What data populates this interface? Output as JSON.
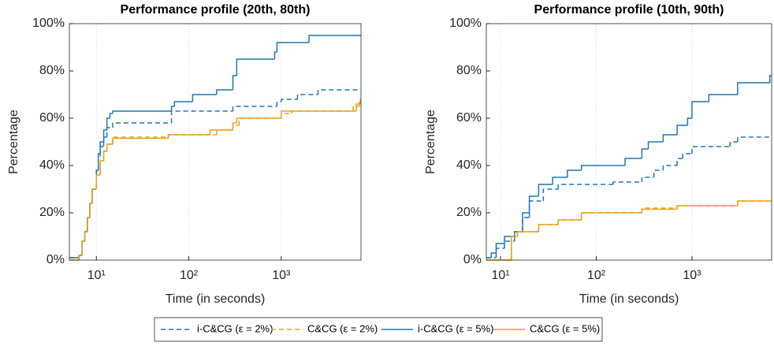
{
  "chart_data": [
    {
      "type": "step",
      "title": "Performance profile (20th, 80th)",
      "xlabel": "Time (in seconds)",
      "ylabel": "Percentage",
      "xscale": "log",
      "xlim": [
        5.1,
        7300
      ],
      "ylim": [
        0,
        100
      ],
      "xticks": [
        {
          "value": 10,
          "label": "10¹"
        },
        {
          "value": 100,
          "label": "10²"
        },
        {
          "value": 1000,
          "label": "10³"
        }
      ],
      "yticks": [
        {
          "value": 0,
          "label": "0%"
        },
        {
          "value": 20,
          "label": "20%"
        },
        {
          "value": 40,
          "label": "40%"
        },
        {
          "value": 60,
          "label": "60%"
        },
        {
          "value": 80,
          "label": "80%"
        },
        {
          "value": 100,
          "label": "100%"
        }
      ],
      "grid": true,
      "legend": "bottom",
      "series": [
        {
          "name": "i-C&CG (ε = 2%)",
          "color": "#1f77b4",
          "linestyle": "dashed",
          "x": [
            5.1,
            6.5,
            7,
            7.5,
            8,
            8.5,
            9,
            10,
            10.5,
            11,
            12,
            13,
            15,
            65,
            300,
            900,
            1000,
            1500,
            2500
          ],
          "values": [
            1,
            2,
            8,
            12,
            18,
            24,
            30,
            38,
            44,
            48,
            52,
            56,
            58,
            63,
            65,
            67,
            68,
            70,
            72
          ]
        },
        {
          "name": "C&CG (ε = 2%)",
          "color": "#e8a317",
          "linestyle": "dashed",
          "x": [
            5.1,
            6.5,
            7,
            7.5,
            8,
            8.5,
            9,
            10,
            11,
            12,
            13,
            15,
            60,
            200,
            300,
            350,
            1000,
            1300,
            6000,
            7000
          ],
          "values": [
            0,
            2,
            8,
            12,
            18,
            24,
            30,
            36,
            42,
            46,
            49,
            52,
            53,
            55,
            57,
            60,
            62,
            63,
            65,
            68
          ]
        },
        {
          "name": "i-C&CG (ε = 5%)",
          "color": "#1f77b4",
          "linestyle": "solid",
          "x": [
            5.1,
            6.5,
            7,
            7.5,
            8,
            8.5,
            9,
            10,
            10.5,
            11,
            12,
            13,
            14,
            15,
            65,
            70,
            110,
            200,
            300,
            330,
            850,
            900,
            2000
          ],
          "values": [
            1,
            2,
            8,
            12,
            18,
            24,
            30,
            38,
            45,
            50,
            55,
            60,
            62,
            63,
            65,
            67,
            70,
            72,
            78,
            85,
            88,
            92,
            95
          ]
        },
        {
          "name": "C&CG (ε = 5%)",
          "color": "#e8a317",
          "linestyle": "solid",
          "x": [
            5.1,
            6.5,
            7,
            7.5,
            8,
            8.5,
            9,
            10,
            11,
            12,
            13,
            15,
            60,
            170,
            300,
            330,
            1000,
            6500,
            7200
          ],
          "values": [
            0,
            2,
            8,
            12,
            18,
            24,
            30,
            36,
            42,
            46,
            49,
            51.5,
            53,
            55,
            58,
            60,
            63,
            66,
            68
          ]
        }
      ]
    },
    {
      "type": "step",
      "title": "Performance profile (10th, 90th)",
      "xlabel": "Time (in seconds)",
      "ylabel": "Percentage",
      "xscale": "log",
      "xlim": [
        7.1,
        6800
      ],
      "ylim": [
        0,
        100
      ],
      "xticks": [
        {
          "value": 10,
          "label": "10¹"
        },
        {
          "value": 100,
          "label": "10²"
        },
        {
          "value": 1000,
          "label": "10³"
        }
      ],
      "yticks": [
        {
          "value": 0,
          "label": "0%"
        },
        {
          "value": 20,
          "label": "20%"
        },
        {
          "value": 40,
          "label": "40%"
        },
        {
          "value": 60,
          "label": "60%"
        },
        {
          "value": 80,
          "label": "80%"
        },
        {
          "value": 100,
          "label": "100%"
        }
      ],
      "grid": true,
      "series": [
        {
          "x": [
            7.1,
            9,
            11,
            14,
            17,
            20,
            28,
            40,
            150,
            300,
            400,
            500,
            700,
            800,
            1000,
            2500,
            3000
          ],
          "values": [
            1,
            5,
            8,
            12,
            18,
            25,
            30,
            32,
            33,
            35,
            38,
            40,
            43,
            45,
            48,
            50,
            52
          ]
        },
        {
          "x": [
            7.1,
            12,
            13,
            15,
            25,
            40,
            70,
            300,
            700,
            3000
          ],
          "values": [
            0,
            0,
            10,
            12,
            15,
            17,
            20,
            22,
            23,
            25
          ]
        },
        {
          "x": [
            7.1,
            8,
            9,
            11,
            14,
            17,
            20,
            25,
            35,
            50,
            70,
            200,
            300,
            350,
            500,
            700,
            900,
            1000,
            1500,
            3000,
            6500
          ],
          "values": [
            1,
            3,
            7,
            10,
            12,
            20,
            27,
            32,
            35,
            38,
            40,
            43,
            47,
            50,
            53,
            57,
            60,
            67,
            70,
            75,
            78
          ]
        },
        {
          "x": [
            7.1,
            12,
            13,
            15,
            25,
            40,
            70,
            300,
            700,
            3000
          ],
          "values": [
            0,
            0,
            10,
            12,
            15,
            17,
            20,
            21.5,
            23,
            25
          ]
        }
      ]
    }
  ]
}
